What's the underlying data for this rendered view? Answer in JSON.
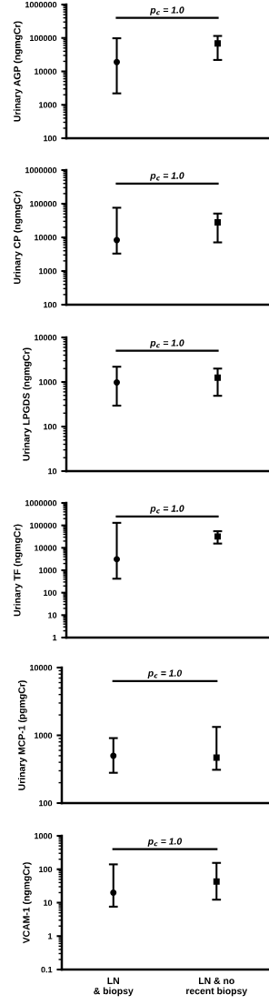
{
  "chart_data": [
    {
      "type": "scatter",
      "categories": [
        null,
        null
      ],
      "ylabel": "Urinary AGP (ngmgCr)",
      "log": true,
      "ylim": [
        100,
        1000000
      ],
      "yticks": [
        100,
        1000,
        10000,
        100000,
        1000000
      ],
      "grid": false,
      "annotations": [
        "p$_{c}$ = 1.0"
      ],
      "series": [
        {
          "color": "#000000",
          "marker": "circle",
          "values": [
            19000,
            null
          ],
          "errors": [
            [
              2200,
              98000
            ],
            null
          ]
        },
        {
          "color": "#000000",
          "marker": "square",
          "values": [
            null,
            69000
          ],
          "errors": [
            null,
            [
              22000,
              115000
            ]
          ]
        }
      ]
    },
    {
      "type": "scatter",
      "categories": [
        null,
        null
      ],
      "ylabel": "Urinary CP (ngmgCr)",
      "log": true,
      "ylim": [
        100,
        1000000
      ],
      "yticks": [
        100,
        1000,
        10000,
        100000,
        1000000
      ],
      "grid": false,
      "annotations": [
        "p$_{c}$ = 1.0"
      ],
      "series": [
        {
          "color": "#000000",
          "marker": "circle",
          "values": [
            8300,
            null
          ],
          "errors": [
            [
              3300,
              76000
            ],
            null
          ]
        },
        {
          "color": "#000000",
          "marker": "square",
          "values": [
            null,
            28000
          ],
          "errors": [
            null,
            [
              7100,
              51000
            ]
          ]
        }
      ]
    },
    {
      "type": "scatter",
      "categories": [
        null,
        null
      ],
      "ylabel": "Urinary LPGDS (ngmgCr)",
      "log": true,
      "ylim": [
        10,
        10000
      ],
      "yticks": [
        10,
        100,
        1000,
        10000
      ],
      "grid": false,
      "annotations": [
        "p$_{c}$ = 1.0"
      ],
      "series": [
        {
          "color": "#000000",
          "marker": "circle",
          "values": [
            980,
            null
          ],
          "errors": [
            [
              295,
              2200
            ],
            null
          ]
        },
        {
          "color": "#000000",
          "marker": "square",
          "values": [
            null,
            1250
          ],
          "errors": [
            null,
            [
              490,
              2000
            ]
          ]
        }
      ]
    },
    {
      "type": "scatter",
      "categories": [
        null,
        null
      ],
      "ylabel": "Urinary TF (ngmgCr)",
      "log": true,
      "ylim": [
        1,
        1000000
      ],
      "yticks": [
        1,
        10,
        100,
        1000,
        10000,
        100000,
        1000000
      ],
      "grid": false,
      "annotations": [
        "p$_{c}$ = 1.0"
      ],
      "series": [
        {
          "color": "#000000",
          "marker": "circle",
          "values": [
            3100,
            null
          ],
          "errors": [
            [
              420,
              130000
            ],
            null
          ]
        },
        {
          "color": "#000000",
          "marker": "square",
          "values": [
            null,
            32000
          ],
          "errors": [
            null,
            [
              15500,
              55000
            ]
          ]
        }
      ]
    },
    {
      "type": "scatter",
      "categories": [
        null,
        null
      ],
      "ylabel": "Urinary MCP-1 (pgmgCr)",
      "log": true,
      "ylim": [
        100,
        10000
      ],
      "yticks": [
        100,
        1000,
        10000
      ],
      "grid": false,
      "annotations": [
        "p$_{c}$ = 1.0"
      ],
      "series": [
        {
          "color": "#000000",
          "marker": "circle",
          "values": [
            500,
            null
          ],
          "errors": [
            [
              280,
              910
            ],
            null
          ]
        },
        {
          "color": "#000000",
          "marker": "square",
          "values": [
            null,
            470
          ],
          "errors": [
            null,
            [
              310,
              1330
            ]
          ]
        }
      ]
    },
    {
      "type": "scatter",
      "categories": [
        "LN\n& biopsy",
        "LN & no\nrecent biopsy"
      ],
      "ylabel": "VCAM-1 (ngmgCr)",
      "log": true,
      "ylim": [
        0.1,
        1000
      ],
      "yticks": [
        0.1,
        1,
        10,
        100,
        1000
      ],
      "grid": false,
      "annotations": [
        "p$_{c}$ = 1.0"
      ],
      "series": [
        {
          "color": "#000000",
          "marker": "circle",
          "values": [
            20,
            null
          ],
          "errors": [
            [
              7.6,
              140
            ],
            null
          ]
        },
        {
          "color": "#000000",
          "marker": "square",
          "values": [
            null,
            43
          ],
          "errors": [
            null,
            [
              12.3,
              155
            ]
          ]
        }
      ]
    }
  ]
}
